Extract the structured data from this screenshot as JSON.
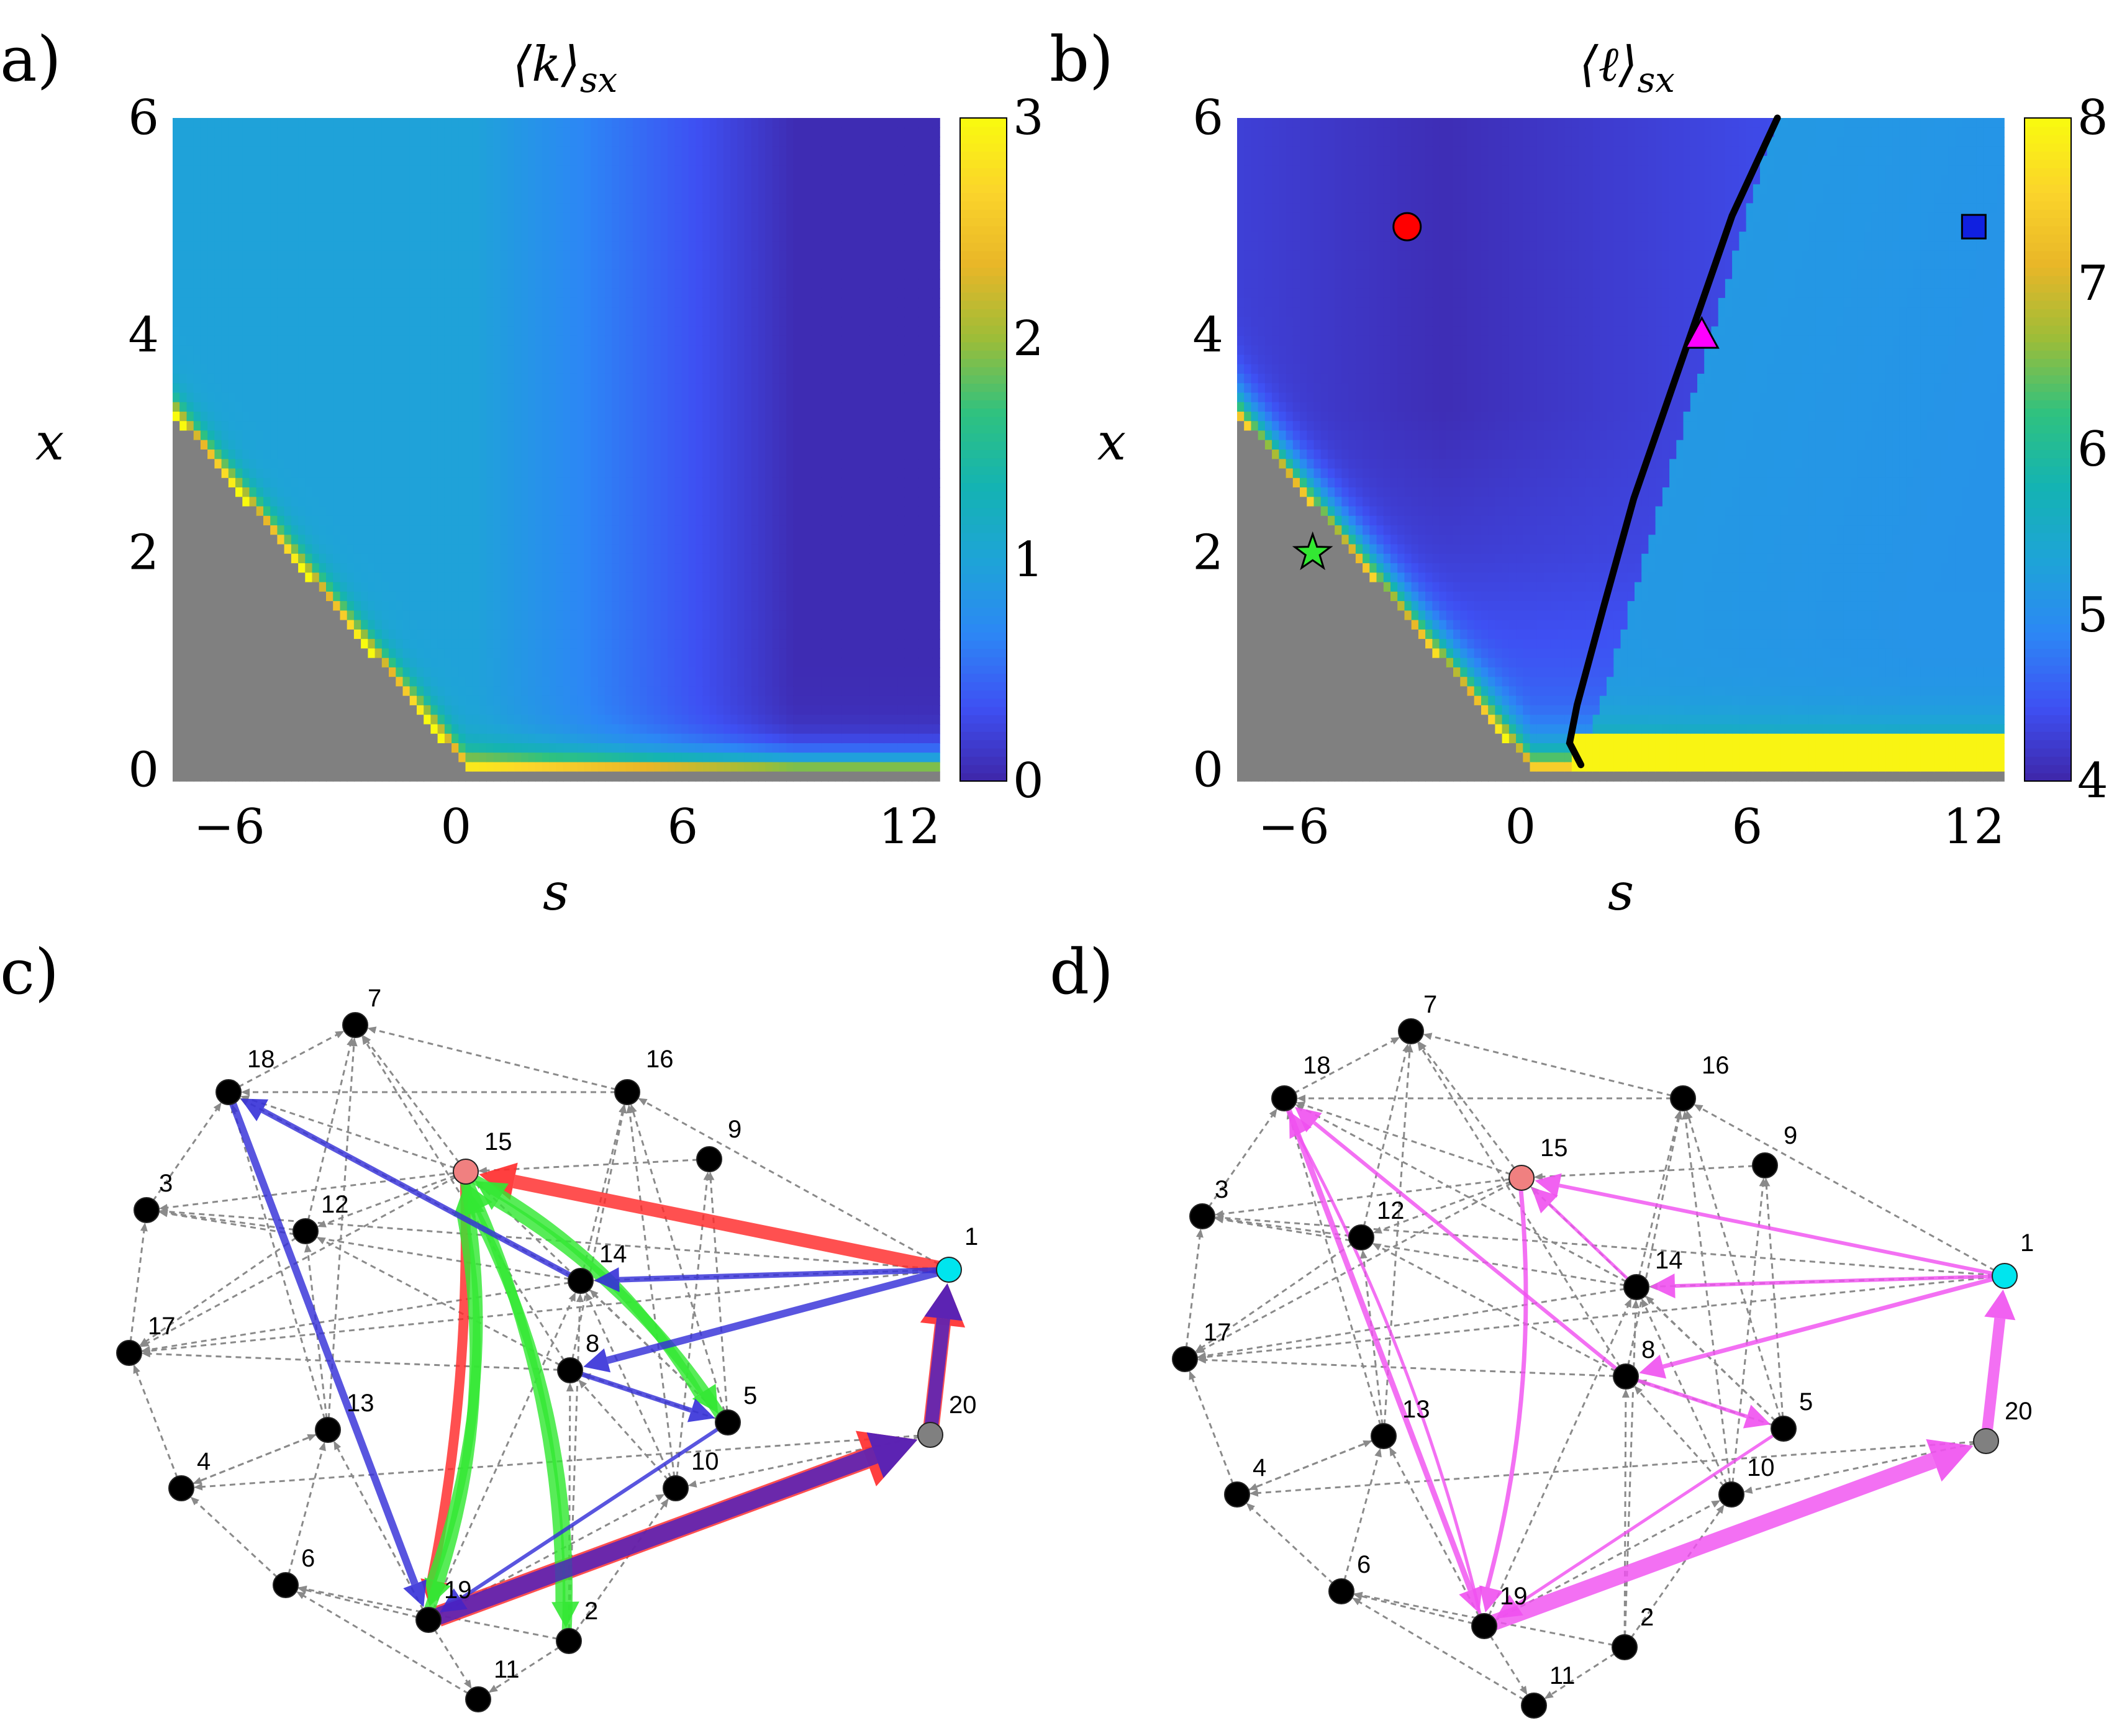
{
  "colors": {
    "cmap": [
      "#3e26a8",
      "#3e50f3",
      "#2c87f5",
      "#1ea4d7",
      "#14b3b3",
      "#2fc27f",
      "#9cbd38",
      "#e8b628",
      "#fbd42b",
      "#f9fb0e"
    ],
    "grey_region": "#808080",
    "red": "#ff2a2a",
    "blue": "#3530d8",
    "green": "#33e833",
    "magenta": "#f050f0",
    "purple": "#4a20c0",
    "node_black": "#000000",
    "node_pink": "#f08080",
    "node_cyan": "#00e5ee",
    "node_grey": "#808080",
    "edge_grey": "#8a8a8a"
  },
  "chart_data": [
    {
      "panel": "a)",
      "type": "heatmap",
      "title": "⟨k⟩",
      "title_sub": "sx",
      "xlabel": "s",
      "ylabel": "x",
      "xlim": [
        -7.5,
        12.8
      ],
      "ylim": [
        -0.1,
        6
      ],
      "xticks": [
        "−6",
        "0",
        "6",
        "12"
      ],
      "xtick_values": [
        -6,
        0,
        6,
        12
      ],
      "yticks": [
        "0",
        "2",
        "4",
        "6"
      ],
      "ytick_values": [
        0,
        2,
        4,
        6
      ],
      "colorbar": {
        "min": 0,
        "max": 3,
        "ticks": [
          "0",
          "1",
          "2",
          "3"
        ],
        "tick_values": [
          0,
          1,
          2,
          3
        ]
      }
    },
    {
      "panel": "b)",
      "type": "heatmap",
      "title": "⟨ℓ⟩",
      "title_sub": "sx",
      "xlabel": "s",
      "ylabel": "x",
      "xlim": [
        -7.5,
        12.8
      ],
      "ylim": [
        -0.1,
        6
      ],
      "xticks": [
        "−6",
        "0",
        "6",
        "12"
      ],
      "xtick_values": [
        -6,
        0,
        6,
        12
      ],
      "yticks": [
        "0",
        "2",
        "4",
        "6"
      ],
      "ytick_values": [
        0,
        2,
        4,
        6
      ],
      "colorbar": {
        "min": 4,
        "max": 8,
        "ticks": [
          "4",
          "5",
          "6",
          "7",
          "8"
        ],
        "tick_values": [
          4,
          5,
          6,
          7,
          8
        ]
      },
      "boundary_line": [
        [
          1.6,
          0.05
        ],
        [
          1.3,
          0.25
        ],
        [
          1.5,
          0.6
        ],
        [
          2.2,
          1.5
        ],
        [
          3.0,
          2.5
        ],
        [
          4.0,
          3.5
        ],
        [
          4.8,
          4.3
        ],
        [
          5.6,
          5.1
        ],
        [
          6.8,
          6.0
        ]
      ],
      "markers": [
        {
          "shape": "circle",
          "s": -3,
          "x": 5,
          "color": "#ff0000"
        },
        {
          "shape": "square",
          "s": 12,
          "x": 5,
          "color": "#1020e0"
        },
        {
          "shape": "triangle",
          "s": 4.8,
          "x": 4,
          "color": "#ff00ff"
        },
        {
          "shape": "star",
          "s": -5.5,
          "x": 2,
          "color": "#33e833"
        }
      ]
    }
  ],
  "networks": [
    {
      "panel": "c)",
      "nodes": [
        {
          "id": "7",
          "color": "black"
        },
        {
          "id": "18",
          "color": "black"
        },
        {
          "id": "16",
          "color": "black"
        },
        {
          "id": "9",
          "color": "black"
        },
        {
          "id": "15",
          "color": "pink"
        },
        {
          "id": "3",
          "color": "black"
        },
        {
          "id": "12",
          "color": "black"
        },
        {
          "id": "14",
          "color": "black"
        },
        {
          "id": "1",
          "color": "cyan"
        },
        {
          "id": "17",
          "color": "black"
        },
        {
          "id": "8",
          "color": "black"
        },
        {
          "id": "5",
          "color": "black"
        },
        {
          "id": "13",
          "color": "black"
        },
        {
          "id": "20",
          "color": "grey"
        },
        {
          "id": "10",
          "color": "black"
        },
        {
          "id": "4",
          "color": "black"
        },
        {
          "id": "6",
          "color": "black"
        },
        {
          "id": "19",
          "color": "black"
        },
        {
          "id": "2",
          "color": "black"
        },
        {
          "id": "11",
          "color": "black"
        }
      ]
    },
    {
      "panel": "d)",
      "nodes": [
        {
          "id": "7",
          "color": "black"
        },
        {
          "id": "18",
          "color": "black"
        },
        {
          "id": "16",
          "color": "black"
        },
        {
          "id": "9",
          "color": "black"
        },
        {
          "id": "15",
          "color": "pink"
        },
        {
          "id": "3",
          "color": "black"
        },
        {
          "id": "12",
          "color": "black"
        },
        {
          "id": "14",
          "color": "black"
        },
        {
          "id": "1",
          "color": "cyan"
        },
        {
          "id": "17",
          "color": "black"
        },
        {
          "id": "8",
          "color": "black"
        },
        {
          "id": "5",
          "color": "black"
        },
        {
          "id": "13",
          "color": "black"
        },
        {
          "id": "20",
          "color": "grey"
        },
        {
          "id": "10",
          "color": "black"
        },
        {
          "id": "4",
          "color": "black"
        },
        {
          "id": "6",
          "color": "black"
        },
        {
          "id": "19",
          "color": "black"
        },
        {
          "id": "2",
          "color": "black"
        },
        {
          "id": "11",
          "color": "black"
        }
      ]
    }
  ]
}
